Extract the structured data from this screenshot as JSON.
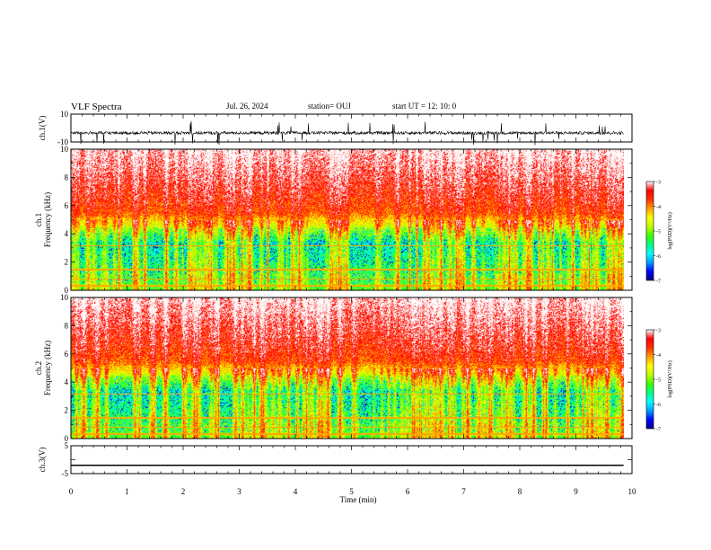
{
  "header": {
    "title": "VLF Spectra",
    "date": "Jul. 26, 2024",
    "station": "station= OUJ",
    "start": "start UT =  12: 10: 0"
  },
  "chart_data": [
    {
      "type": "line",
      "name": "ch1-waveform",
      "ylabel": "ch.1(V)",
      "ylim": [
        -10,
        10
      ],
      "yticks": [
        10,
        -10
      ],
      "xlim": [
        0,
        10
      ],
      "baseline": -3.5,
      "note_x_extent_min": 9.85
    },
    {
      "type": "heatmap",
      "name": "ch1-spectrogram",
      "ylabel": "ch.1\nFrequency (kHz)",
      "ylabel_lines": [
        "ch.1",
        "Frequency (kHz)"
      ],
      "xlim": [
        0,
        10
      ],
      "ylim": [
        0,
        10
      ],
      "yticks": [
        0,
        2,
        4,
        6,
        8,
        10
      ],
      "data_xmax": 9.85,
      "colorbar": {
        "label": "log(PSD)(V²/Hz)",
        "range": [
          -7,
          -3
        ],
        "ticks": [
          -3,
          -4,
          -5,
          -6,
          -7
        ]
      }
    },
    {
      "type": "heatmap",
      "name": "ch2-spectrogram",
      "ylabel": "ch.2\nFrequency (kHz)",
      "ylabel_lines": [
        "ch.2",
        "Frequency (kHz)"
      ],
      "xlim": [
        0,
        10
      ],
      "ylim": [
        0,
        10
      ],
      "yticks": [
        0,
        2,
        4,
        6,
        8,
        10
      ],
      "data_xmax": 9.85,
      "colorbar": {
        "label": "log(PSD)(V²/Hz)",
        "range": [
          -7,
          -3
        ],
        "ticks": [
          -3,
          -4,
          -5,
          -6,
          -7
        ]
      }
    },
    {
      "type": "line",
      "name": "ch3-waveform",
      "ylabel": "ch.3(V)",
      "ylim": [
        -5,
        5
      ],
      "yticks": [
        5,
        0,
        -5
      ],
      "ytick_labels": [
        "5",
        "",
        "-5"
      ],
      "xlim": [
        0,
        10
      ],
      "x": [
        0,
        9.85
      ],
      "y": [
        -2,
        -2
      ],
      "xlabel": "Time (min)",
      "xticks": [
        0,
        1,
        2,
        3,
        4,
        5,
        6,
        7,
        8,
        9,
        10
      ]
    }
  ],
  "colors": {
    "colormap": [
      "#000080",
      "#0000ff",
      "#00a0ff",
      "#00ffff",
      "#00ff80",
      "#40ff00",
      "#c0ff00",
      "#ffff00",
      "#ffa000",
      "#ff3000",
      "#ff0000",
      "#ffffff"
    ],
    "axis": "#000000"
  }
}
